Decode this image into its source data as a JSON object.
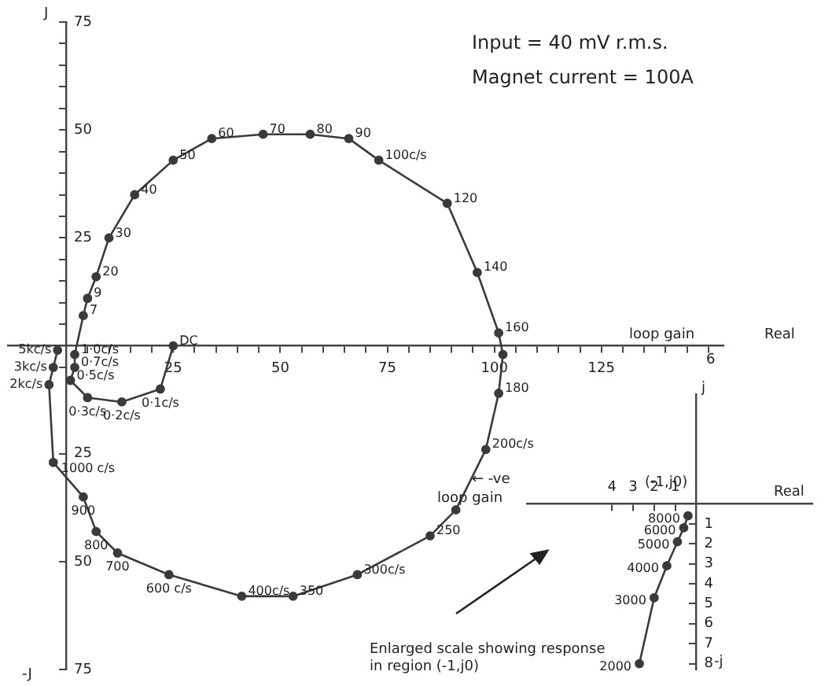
{
  "chart_data": [
    {
      "type": "line",
      "title": "Input = 40 mV r.m.s.",
      "subtitle": "Magnet current = 100A",
      "xlabel": "Real",
      "ylabel": "J",
      "annotations": [
        "-J",
        "loop gain",
        "6",
        {
          "text": "DC",
          "x": 25,
          "y": 0
        },
        {
          "text": "0·1c/s",
          "x": 22,
          "y": -10
        },
        {
          "text": "0·2c/s",
          "x": 13,
          "y": -13
        },
        {
          "text": "0·3c/s",
          "x": 5,
          "y": -12
        },
        {
          "text": "0·5c/s",
          "x": 1,
          "y": -8
        },
        {
          "text": "0·7c/s",
          "x": 2,
          "y": -5
        },
        {
          "text": "1·0c/s",
          "x": 2,
          "y": -2
        },
        {
          "text": "7",
          "x": 4,
          "y": 7
        },
        {
          "text": "9",
          "x": 5,
          "y": 11
        },
        {
          "text": "20",
          "x": 7,
          "y": 16
        },
        {
          "text": "30",
          "x": 10,
          "y": 25
        },
        {
          "text": "40",
          "x": 16,
          "y": 35
        },
        {
          "text": "50",
          "x": 25,
          "y": 43
        },
        {
          "text": "60",
          "x": 34,
          "y": 48
        },
        {
          "text": "70",
          "x": 46,
          "y": 49
        },
        {
          "text": "80",
          "x": 57,
          "y": 49
        },
        {
          "text": "90",
          "x": 66,
          "y": 48
        },
        {
          "text": "100c/s",
          "x": 73,
          "y": 43
        },
        {
          "text": "120",
          "x": 89,
          "y": 33
        },
        {
          "text": "140",
          "x": 96,
          "y": 17
        },
        {
          "text": "160",
          "x": 101,
          "y": 3
        },
        {
          "text": "180",
          "x": 101,
          "y": -11
        },
        {
          "text": "200c/s",
          "x": 98,
          "y": -24
        },
        {
          "text": "250",
          "x": 85,
          "y": -44
        },
        {
          "text": "300c/s",
          "x": 68,
          "y": -53
        },
        {
          "text": "350",
          "x": 53,
          "y": -58
        },
        {
          "text": "400c/s",
          "x": 41,
          "y": -58
        },
        {
          "text": "600 c/s",
          "x": 24,
          "y": -53
        },
        {
          "text": "700",
          "x": 12,
          "y": -48
        },
        {
          "text": "800",
          "x": 7,
          "y": -43
        },
        {
          "text": "900",
          "x": 4,
          "y": -35
        },
        {
          "text": "1000 c/s",
          "x": -3,
          "y": -27
        },
        {
          "text": "2kc/s",
          "x": -4,
          "y": -9
        },
        {
          "text": "3kc/s",
          "x": -3,
          "y": -5
        },
        {
          "text": "5kc/s",
          "x": -2,
          "y": -1
        }
      ],
      "series": [
        {
          "type": "line",
          "color": "#3a3a3a",
          "x": [
            25,
            22,
            13,
            5,
            1,
            2,
            2,
            4,
            5,
            7,
            10,
            16,
            25,
            34,
            46,
            57,
            66,
            73,
            89,
            96,
            101,
            102,
            101,
            98,
            91,
            85,
            68,
            53,
            41,
            24,
            12,
            7,
            4,
            -3,
            -4,
            -3,
            -2
          ],
          "values": [
            0,
            -10,
            -13,
            -12,
            -8,
            -5,
            -2,
            7,
            11,
            16,
            25,
            35,
            43,
            48,
            49,
            49,
            48,
            43,
            33,
            17,
            3,
            -2,
            -11,
            -24,
            -38,
            -44,
            -53,
            -58,
            -58,
            -53,
            -48,
            -43,
            -35,
            -27,
            -9,
            -5,
            -1
          ]
        }
      ],
      "xlim": [
        -13.5,
        153.5
      ],
      "ylim": [
        -75,
        75
      ],
      "xticks": [
        {
          "value": 5,
          "label": null
        },
        {
          "value": 10,
          "label": null
        },
        {
          "value": 15,
          "label": null
        },
        {
          "value": 20,
          "label": null
        },
        25,
        {
          "value": 30,
          "label": null
        },
        {
          "value": 35,
          "label": null
        },
        {
          "value": 40,
          "label": null
        },
        {
          "value": 45,
          "label": null
        },
        50,
        {
          "value": 55,
          "label": null
        },
        {
          "value": 60,
          "label": null
        },
        {
          "value": 65,
          "label": null
        },
        {
          "value": 70,
          "label": null
        },
        75,
        {
          "value": 80,
          "label": null
        },
        {
          "value": 85,
          "label": null
        },
        {
          "value": 90,
          "label": null
        },
        {
          "value": 95,
          "label": null
        },
        100,
        {
          "value": 105,
          "label": null
        },
        {
          "value": 110,
          "label": null
        },
        {
          "value": 115,
          "label": null
        },
        {
          "value": 120,
          "label": null
        },
        125,
        {
          "value": 130,
          "label": null
        },
        {
          "value": 135,
          "label": null
        },
        {
          "value": 140,
          "label": null
        },
        {
          "value": 145,
          "label": null
        },
        {
          "value": 150,
          "label": null
        }
      ],
      "yticks": [
        {
          "value": -75,
          "label": "75"
        },
        {
          "value": -50,
          "label": "50"
        },
        {
          "value": -25,
          "label": "25"
        },
        {
          "value": -5,
          "label": null
        },
        {
          "value": 5,
          "label": null
        },
        {
          "value": 10,
          "label": null
        },
        {
          "value": 15,
          "label": null
        },
        {
          "value": 20,
          "label": null
        },
        25,
        {
          "value": 30,
          "label": null
        },
        {
          "value": 35,
          "label": null
        },
        {
          "value": 40,
          "label": null
        },
        {
          "value": 45,
          "label": null
        },
        50,
        {
          "value": 55,
          "label": null
        },
        {
          "value": 60,
          "label": null
        },
        {
          "value": 65,
          "label": null
        },
        {
          "value": 70,
          "label": null
        },
        75
      ],
      "grid": false,
      "legend": false,
      "marker": "circle"
    },
    {
      "type": "line",
      "xlabel": "Real",
      "ylabel": "j",
      "annotations": [
        "-j",
        "loop gain",
        "← -ve",
        "Enlarged scale showing response in region (-1,j0)",
        "(-1,j0)",
        {
          "text": "8000",
          "x": -0.4,
          "y": -0.6
        },
        {
          "text": "6000",
          "x": -0.6,
          "y": -1.2
        },
        {
          "text": "5000",
          "x": -0.9,
          "y": -1.9
        },
        {
          "text": "4000",
          "x": -1.4,
          "y": -3.1
        },
        {
          "text": "3000",
          "x": -2,
          "y": -4.7
        },
        {
          "text": "2000",
          "x": -2.7,
          "y": -8
        }
      ],
      "series": [
        {
          "type": "line",
          "color": "#3a3a3a",
          "x": [
            -0.4,
            -0.6,
            -0.9,
            -1.4,
            -2,
            -2.7
          ],
          "values": [
            -0.6,
            -1.2,
            -1.9,
            -3.1,
            -4.7,
            -8
          ]
        }
      ],
      "xlim": [
        -8,
        5.5
      ],
      "ylim": [
        -8.3,
        5.5
      ],
      "xticks": [
        {
          "value": -4,
          "label": "4"
        },
        {
          "value": -3,
          "label": "3"
        },
        {
          "value": -2,
          "label": "2"
        },
        {
          "value": -1,
          "label": "1"
        }
      ],
      "yticks": [
        {
          "value": -8,
          "label": "8"
        },
        {
          "value": -7,
          "label": "7"
        },
        {
          "value": -6,
          "label": "6"
        },
        {
          "value": -5,
          "label": "5"
        },
        {
          "value": -4,
          "label": "4"
        },
        {
          "value": -3,
          "label": "3"
        },
        {
          "value": -2,
          "label": "2"
        },
        {
          "value": -1,
          "label": "1"
        }
      ],
      "grid": false,
      "legend": false,
      "marker": "circle"
    }
  ]
}
